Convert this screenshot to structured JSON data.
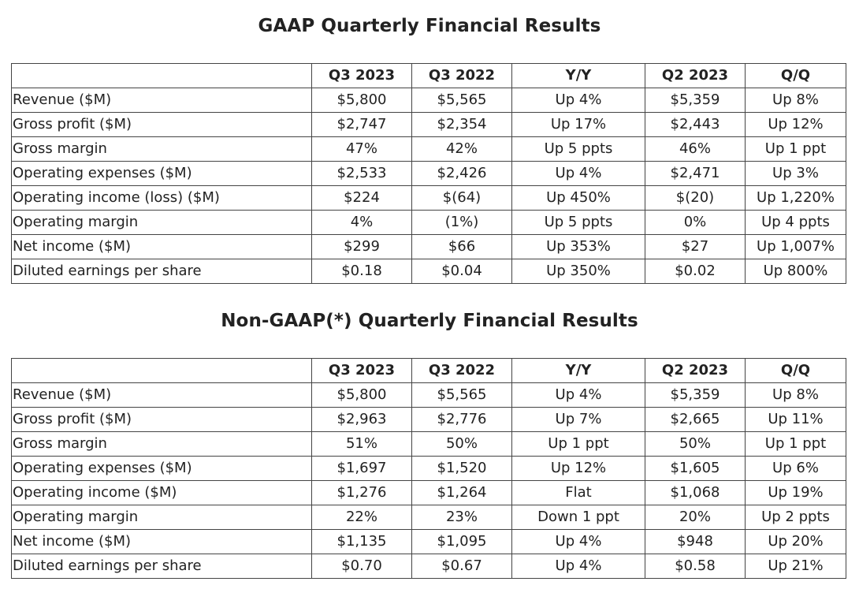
{
  "gaap": {
    "title": "GAAP Quarterly Financial Results",
    "headers": [
      "",
      "Q3 2023",
      "Q3 2022",
      "Y/Y",
      "Q2 2023",
      "Q/Q"
    ],
    "rows": [
      [
        "Revenue ($M)",
        "$5,800",
        "$5,565",
        "Up 4%",
        "$5,359",
        "Up 8%"
      ],
      [
        "Gross profit ($M)",
        "$2,747",
        "$2,354",
        "Up 17%",
        "$2,443",
        "Up 12%"
      ],
      [
        "Gross margin",
        "47%",
        "42%",
        "Up 5 ppts",
        "46%",
        "Up 1 ppt"
      ],
      [
        "Operating expenses ($M)",
        "$2,533",
        "$2,426",
        "Up 4%",
        "$2,471",
        "Up 3%"
      ],
      [
        "Operating income (loss) ($M)",
        "$224",
        "$(64)",
        "Up 450%",
        "$(20)",
        "Up 1,220%"
      ],
      [
        "Operating margin",
        "4%",
        "(1%)",
        "Up 5 ppts",
        "0%",
        "Up 4 ppts"
      ],
      [
        "Net income ($M)",
        "$299",
        "$66",
        "Up 353%",
        "$27",
        "Up 1,007%"
      ],
      [
        "Diluted earnings per share",
        "$0.18",
        "$0.04",
        "Up 350%",
        "$0.02",
        "Up 800%"
      ]
    ]
  },
  "nongaap": {
    "title": "Non-GAAP(*) Quarterly Financial Results",
    "headers": [
      "",
      "Q3 2023",
      "Q3 2022",
      "Y/Y",
      "Q2 2023",
      "Q/Q"
    ],
    "rows": [
      [
        "Revenue ($M)",
        "$5,800",
        "$5,565",
        "Up 4%",
        "$5,359",
        "Up 8%"
      ],
      [
        "Gross profit ($M)",
        "$2,963",
        "$2,776",
        "Up 7%",
        "$2,665",
        "Up 11%"
      ],
      [
        "Gross margin",
        "51%",
        "50%",
        "Up 1 ppt",
        "50%",
        "Up 1 ppt"
      ],
      [
        "Operating expenses ($M)",
        "$1,697",
        "$1,520",
        "Up 12%",
        "$1,605",
        "Up 6%"
      ],
      [
        "Operating income ($M)",
        "$1,276",
        "$1,264",
        "Flat",
        "$1,068",
        "Up 19%"
      ],
      [
        "Operating margin",
        "22%",
        "23%",
        "Down 1 ppt",
        "20%",
        "Up 2 ppts"
      ],
      [
        "Net income ($M)",
        "$1,135",
        "$1,095",
        "Up 4%",
        "$948",
        "Up 20%"
      ],
      [
        "Diluted earnings per share",
        "$0.70",
        "$0.67",
        "Up 4%",
        "$0.58",
        "Up 21%"
      ]
    ]
  }
}
